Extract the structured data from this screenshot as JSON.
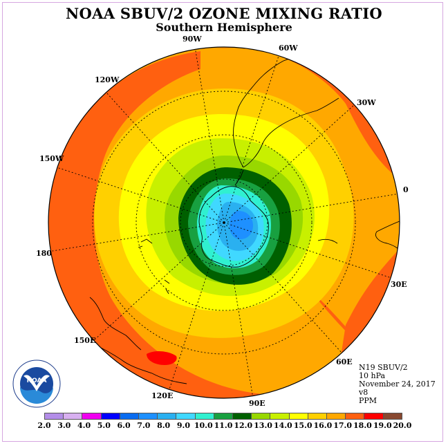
{
  "title": "NOAA SBUV/2 OZONE MIXING RATIO",
  "subtitle": "Southern Hemisphere",
  "lon_labels": [
    "90W",
    "60W",
    "30W",
    "0",
    "30E",
    "60E",
    "90E",
    "120E",
    "150E",
    "180",
    "150W",
    "120W"
  ],
  "info": {
    "satellite": "N19 SBUV/2",
    "level": "10 hPa",
    "date": "November 24, 2017",
    "version": "v8",
    "units": "PPM"
  },
  "logo_text": "NOAA",
  "colorbar": {
    "ticks": [
      "2.0",
      "3.0",
      "4.0",
      "5.0",
      "6.0",
      "7.0",
      "8.0",
      "9.0",
      "10.0",
      "11.0",
      "12.0",
      "13.0",
      "14.0",
      "15.0",
      "16.0",
      "17.0",
      "18.0",
      "19.0",
      "20.0"
    ],
    "colors": [
      "#b38de8",
      "#d8b0f0",
      "#f000f0",
      "#0000ff",
      "#0a6cf0",
      "#1e90ff",
      "#2ab0f0",
      "#40d8ff",
      "#30f0d0",
      "#18a040",
      "#006000",
      "#98d800",
      "#c8f000",
      "#ffff00",
      "#ffd000",
      "#ffa800",
      "#ff6010",
      "#ff0000",
      "#884830"
    ]
  }
}
